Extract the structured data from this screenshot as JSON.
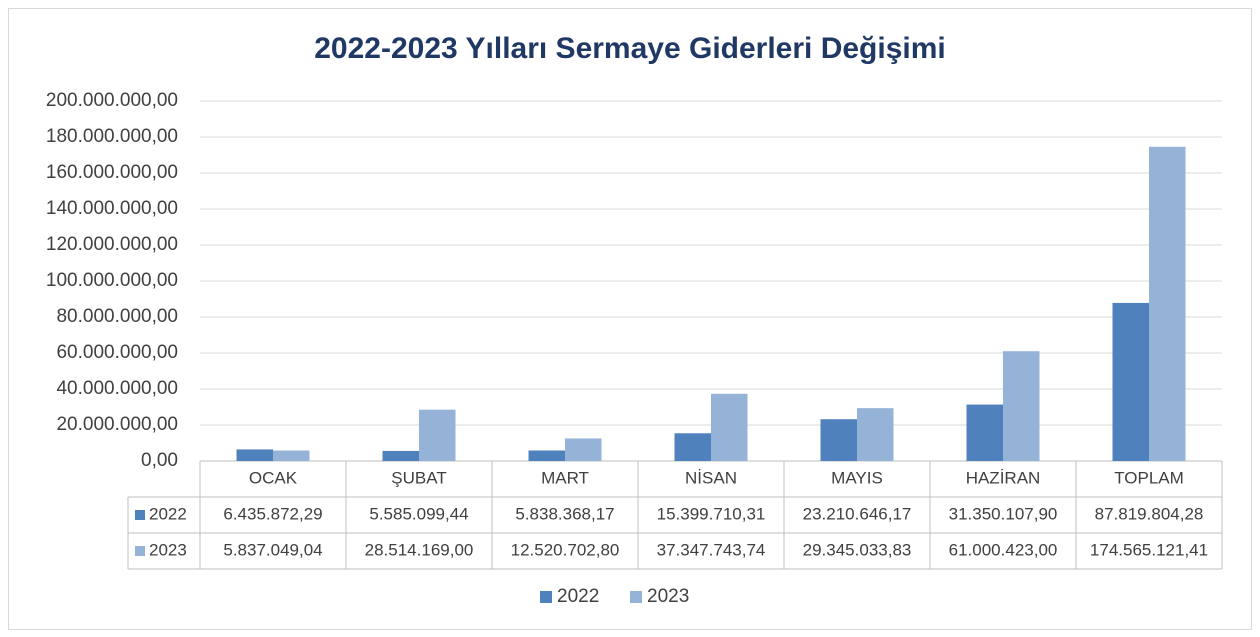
{
  "chart_data": {
    "type": "bar",
    "title": "2022-2023 Yılları Sermaye Giderleri Değişimi",
    "categories": [
      "OCAK",
      "ŞUBAT",
      "MART",
      "NİSAN",
      "MAYIS",
      "HAZİRAN",
      "TOPLAM"
    ],
    "series": [
      {
        "name": "2022",
        "color": "#4f81bd",
        "values": [
          6435872.29,
          5585099.44,
          5838368.17,
          15399710.31,
          23210646.17,
          31350107.9,
          87819804.28
        ],
        "value_labels": [
          "6.435.872,29",
          "5.585.099,44",
          "5.838.368,17",
          "15.399.710,31",
          "23.210.646,17",
          "31.350.107,90",
          "87.819.804,28"
        ]
      },
      {
        "name": "2023",
        "color": "#95b3d7",
        "values": [
          5837049.04,
          28514169.0,
          12520702.8,
          37347743.74,
          29345033.83,
          61000423.0,
          174565121.41
        ],
        "value_labels": [
          "5.837.049,04",
          "28.514.169,00",
          "12.520.702,80",
          "37.347.743,74",
          "29.345.033,83",
          "61.000.423,00",
          "174.565.121,41"
        ]
      }
    ],
    "ylim": [
      0,
      200000000
    ],
    "yticks": [
      {
        "value": 0,
        "label": "0,00"
      },
      {
        "value": 20000000,
        "label": "20.000.000,00"
      },
      {
        "value": 40000000,
        "label": "40.000.000,00"
      },
      {
        "value": 60000000,
        "label": "60.000.000,00"
      },
      {
        "value": 80000000,
        "label": "80.000.000,00"
      },
      {
        "value": 100000000,
        "label": "100.000.000,00"
      },
      {
        "value": 120000000,
        "label": "120.000.000,00"
      },
      {
        "value": 140000000,
        "label": "140.000.000,00"
      },
      {
        "value": 160000000,
        "label": "160.000.000,00"
      },
      {
        "value": 180000000,
        "label": "180.000.000,00"
      },
      {
        "value": 200000000,
        "label": "200.000.000,00"
      }
    ],
    "grid": true,
    "legend": "bottom"
  }
}
